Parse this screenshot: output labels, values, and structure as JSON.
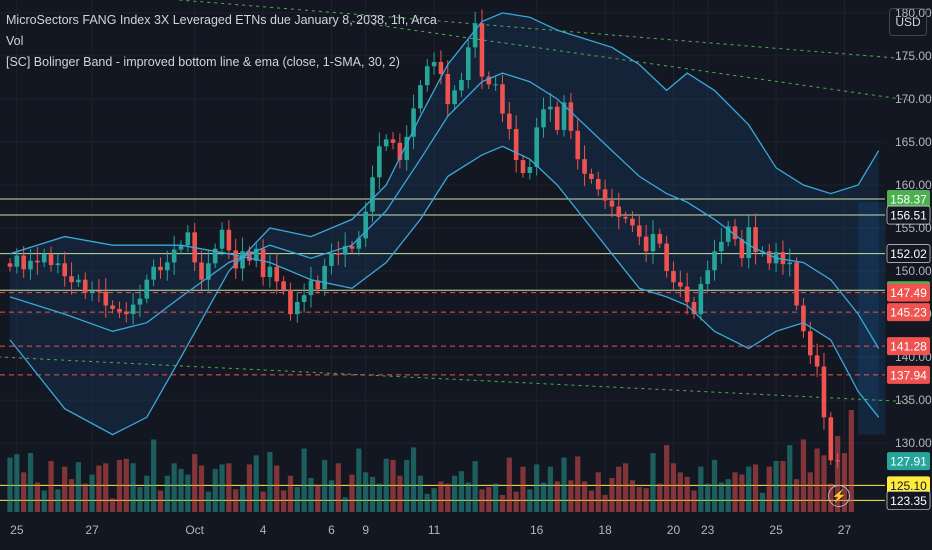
{
  "header": {
    "title": "MicroSectors FANG Index 3X Leveraged ETNs due January 8, 2038, 1h, Arca",
    "vol_label": "Vol",
    "indicator": "[SC] Bolinger Band - improved bottom line & ema (close, 1-SMA, 30, 2)"
  },
  "currency_button": "USD",
  "flash_icon": "lightning-icon",
  "colors": {
    "background": "#131722",
    "up": "#26a69a",
    "down": "#ef5350",
    "band": "#3aa8d8",
    "green_line": "#c5e1a5",
    "red_dashed": "#ef5350",
    "yellow_line": "#ffeb3b",
    "green_dotted": "#4caf50"
  },
  "chart_data": {
    "type": "candlestick",
    "y_axis": {
      "min": 122,
      "max": 181.5,
      "ticks": [
        180,
        175,
        170,
        165,
        160,
        155,
        150,
        145,
        140,
        135,
        130
      ]
    },
    "x_ticks": [
      {
        "label": "25",
        "index": 1
      },
      {
        "label": "27",
        "index": 12
      },
      {
        "label": "Oct",
        "index": 27
      },
      {
        "label": "4",
        "index": 37
      },
      {
        "label": "6",
        "index": 47
      },
      {
        "label": "9",
        "index": 52
      },
      {
        "label": "11",
        "index": 62
      },
      {
        "label": "16",
        "index": 77
      },
      {
        "label": "18",
        "index": 87
      },
      {
        "label": "20",
        "index": 97
      },
      {
        "label": "23",
        "index": 102
      },
      {
        "label": "25",
        "index": 112
      },
      {
        "label": "27",
        "index": 122
      }
    ],
    "closes": [
      150.5,
      151.8,
      150.2,
      151.2,
      151.0,
      152.0,
      150.7,
      150.9,
      149.4,
      148.7,
      149.0,
      147.5,
      147.7,
      147.6,
      146.0,
      145.6,
      145.3,
      145.0,
      146.1,
      146.8,
      149.0,
      150.5,
      150.1,
      151.0,
      152.5,
      153.0,
      154.5,
      151.0,
      149.0,
      150.9,
      152.6,
      154.8,
      152.4,
      150.3,
      152.3,
      151.2,
      152.6,
      149.3,
      150.5,
      148.8,
      147.8,
      145.0,
      146.4,
      147.2,
      148.9,
      147.9,
      150.6,
      152.1,
      151.9,
      152.9,
      152.6,
      153.8,
      156.9,
      160.9,
      164.5,
      165.3,
      164.9,
      162.9,
      165.6,
      168.9,
      171.6,
      173.8,
      174.3,
      172.9,
      169.4,
      171.0,
      172.2,
      176.0,
      178.8,
      172.6,
      171.7,
      171.7,
      168.3,
      166.5,
      162.9,
      161.4,
      162.1,
      166.7,
      168.8,
      169.1,
      166.4,
      169.6,
      166.3,
      163.0,
      161.3,
      160.7,
      159.5,
      158.2,
      157.5,
      156.3,
      156.1,
      155.3,
      154.0,
      152.3,
      154.3,
      153.2,
      150.0,
      148.7,
      148.2,
      146.4,
      145.0,
      148.5,
      150.1,
      152.3,
      153.4,
      155.2,
      153.7,
      151.5,
      155.1,
      152.2,
      152.3,
      150.9,
      152.2,
      150.8,
      151.0,
      146.0,
      143.0,
      140.2,
      138.9,
      133.0,
      128.0,
      127.9
    ],
    "volumes": [
      48,
      51,
      35,
      52,
      26,
      19,
      45,
      20,
      40,
      29,
      44,
      25,
      33,
      41,
      43,
      12,
      46,
      47,
      43,
      22,
      32,
      64,
      19,
      32,
      43,
      38,
      33,
      51,
      41,
      18,
      38,
      42,
      43,
      20,
      23,
      42,
      50,
      18,
      53,
      41,
      19,
      32,
      22,
      56,
      30,
      24,
      46,
      28,
      43,
      13,
      33,
      56,
      35,
      31,
      25,
      47,
      46,
      32,
      46,
      57,
      32,
      16,
      21,
      27,
      25,
      32,
      36,
      26,
      45,
      20,
      22,
      25,
      15,
      48,
      18,
      40,
      20,
      42,
      26,
      40,
      27,
      48,
      28,
      49,
      27,
      19,
      35,
      15,
      30,
      40,
      43,
      28,
      22,
      21,
      52,
      25,
      59,
      43,
      35,
      31,
      19,
      40,
      25,
      46,
      26,
      29,
      35,
      33,
      40,
      42,
      17,
      40,
      45,
      45,
      59,
      29,
      64,
      35,
      56,
      50,
      25,
      67,
      52,
      90
    ],
    "upper_band": [
      [
        0,
        142
      ],
      [
        8,
        134
      ],
      [
        15,
        131
      ],
      [
        20,
        133
      ],
      [
        25,
        140
      ],
      [
        32,
        150
      ],
      [
        38,
        155
      ],
      [
        44,
        154
      ],
      [
        50,
        156
      ],
      [
        55,
        160
      ],
      [
        60,
        168
      ],
      [
        64,
        174
      ],
      [
        69,
        179
      ],
      [
        72,
        180
      ],
      [
        76,
        179.5
      ],
      [
        80,
        178
      ],
      [
        84,
        177
      ],
      [
        88,
        176
      ],
      [
        92,
        174
      ],
      [
        96,
        171
      ],
      [
        99,
        173
      ],
      [
        103,
        171
      ],
      [
        108,
        167
      ],
      [
        112,
        162
      ],
      [
        116,
        160
      ],
      [
        120,
        159
      ],
      [
        124,
        160
      ],
      [
        127,
        164
      ]
    ],
    "middle_band": [
      [
        0,
        147
      ],
      [
        8,
        145
      ],
      [
        15,
        143
      ],
      [
        20,
        144
      ],
      [
        25,
        147
      ],
      [
        32,
        151
      ],
      [
        38,
        153
      ],
      [
        44,
        151.5
      ],
      [
        50,
        153
      ],
      [
        55,
        157
      ],
      [
        60,
        163
      ],
      [
        64,
        168
      ],
      [
        69,
        172
      ],
      [
        72,
        173
      ],
      [
        76,
        172
      ],
      [
        80,
        170
      ],
      [
        84,
        167
      ],
      [
        88,
        164
      ],
      [
        92,
        161
      ],
      [
        96,
        159
      ],
      [
        99,
        158
      ],
      [
        103,
        156
      ],
      [
        108,
        153
      ],
      [
        112,
        151.5
      ],
      [
        116,
        151
      ],
      [
        120,
        149
      ],
      [
        124,
        145
      ],
      [
        127,
        141
      ]
    ],
    "lower_band": [
      [
        0,
        152
      ],
      [
        8,
        154
      ],
      [
        15,
        153
      ],
      [
        20,
        153
      ],
      [
        25,
        153
      ],
      [
        32,
        152
      ],
      [
        38,
        151
      ],
      [
        44,
        149
      ],
      [
        50,
        148
      ],
      [
        55,
        151
      ],
      [
        60,
        156
      ],
      [
        64,
        161
      ],
      [
        69,
        163.5
      ],
      [
        72,
        164.5
      ],
      [
        76,
        163
      ],
      [
        80,
        160
      ],
      [
        84,
        156
      ],
      [
        88,
        152
      ],
      [
        92,
        148
      ],
      [
        96,
        147
      ],
      [
        99,
        146
      ],
      [
        103,
        143
      ],
      [
        108,
        141
      ],
      [
        112,
        143
      ],
      [
        116,
        144
      ],
      [
        120,
        142
      ],
      [
        124,
        136
      ],
      [
        127,
        133
      ]
    ],
    "horizontal_lines": [
      {
        "value": 158.37,
        "label": "158.37",
        "style": "solid",
        "color": "#c5e1a5",
        "tag": "#4caf50"
      },
      {
        "value": 156.51,
        "label": "156.51",
        "style": "solid",
        "color": "#c5e1a5",
        "tag": "#131722"
      },
      {
        "value": 152.02,
        "label": "152.02",
        "style": "solid",
        "color": "#c5e1a5",
        "tag": "#131722"
      },
      {
        "value": 147.77,
        "label": "147.77",
        "style": "solid",
        "color": "#c5e1a5",
        "tag": "#4caf50"
      },
      {
        "value": 147.49,
        "label": "147.49",
        "style": "dashed",
        "color": "#ef5350",
        "tag": "#ef5350"
      },
      {
        "value": 145.23,
        "label": "145.23",
        "style": "dashed",
        "color": "#ef5350",
        "tag": "#ef5350"
      },
      {
        "value": 141.28,
        "label": "141.28",
        "style": "dashed",
        "color": "#ef5350",
        "tag": "#ef5350"
      },
      {
        "value": 137.94,
        "label": "137.94",
        "style": "dashed",
        "color": "#ef5350",
        "tag": "#ef5350"
      },
      {
        "value": 125.1,
        "label": "125.10",
        "style": "solid",
        "color": "#ffeb3b",
        "tag": "#ffeb3b"
      },
      {
        "value": 123.35,
        "label": "123.35",
        "style": "solid",
        "color": "#ffeb3b",
        "tag": "#131722"
      }
    ],
    "last_price": {
      "value": 127.91,
      "label": "127.91"
    },
    "trendlines": [
      {
        "from": [
          -14,
          184
        ],
        "to": [
          132,
          174.6
        ]
      },
      {
        "from": [
          50,
          179
        ],
        "to": [
          132,
          169.8
        ]
      },
      {
        "from": [
          -14,
          140.5
        ],
        "to": [
          132,
          134.8
        ]
      }
    ],
    "forecast_area": {
      "start_index": 124,
      "end_index": 128,
      "top": 158,
      "bottom": 131
    }
  }
}
